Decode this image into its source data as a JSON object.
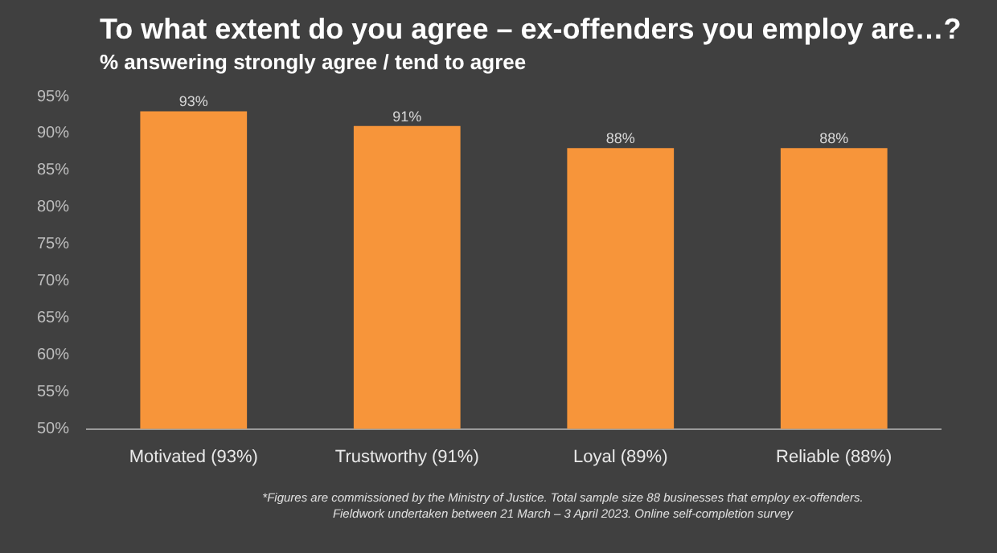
{
  "chart_data": {
    "type": "bar",
    "title": "To what extent do you agree – ex-offenders you employ are…?",
    "subtitle": "% answering strongly agree / tend to agree",
    "categories": [
      "Motivated (93%)",
      "Trustworthy (91%)",
      "Loyal (89%)",
      "Reliable (88%)"
    ],
    "values": [
      93,
      91,
      88,
      88
    ],
    "value_labels": [
      "93%",
      "91%",
      "88%",
      "88%"
    ],
    "color": "#f7953a",
    "ylim": [
      50,
      95
    ],
    "yticks": [
      {
        "value": 50,
        "label": "50%"
      },
      {
        "value": 55,
        "label": "55%"
      },
      {
        "value": 60,
        "label": "60%"
      },
      {
        "value": 65,
        "label": "65%"
      },
      {
        "value": 70,
        "label": "70%"
      },
      {
        "value": 75,
        "label": "75%"
      },
      {
        "value": 80,
        "label": "80%"
      },
      {
        "value": 85,
        "label": "85%"
      },
      {
        "value": 90,
        "label": "90%"
      },
      {
        "value": 95,
        "label": "95%"
      }
    ],
    "grid": false,
    "legend": false,
    "annotations": [
      "*Figures are commissioned by the Ministry of Justice. Total sample size 88 businesses that employ ex-offenders.",
      "Fieldwork undertaken between 21 March – 3 April 2023. Online self-completion survey"
    ]
  }
}
